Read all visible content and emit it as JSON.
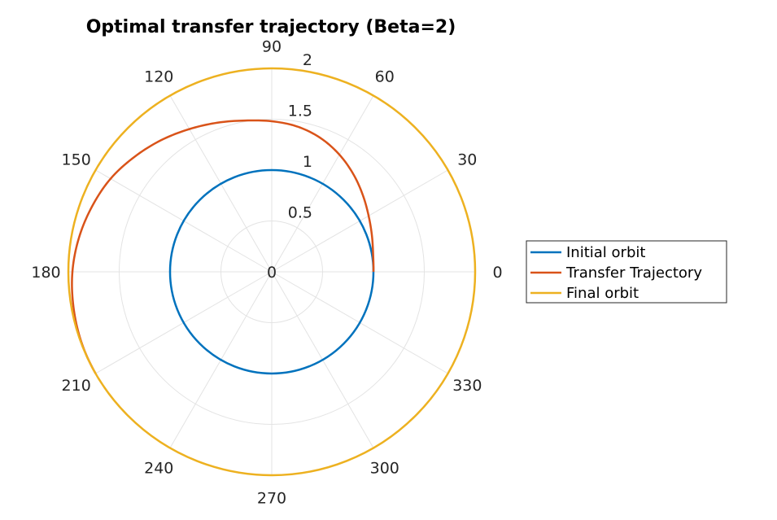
{
  "chart_data": {
    "type": "polar-line",
    "title": "Optimal transfer trajectory (Beta=2)",
    "rlim": [
      0,
      2
    ],
    "r_ticks": [
      "0",
      "0.5",
      "1",
      "1.5",
      "2"
    ],
    "theta_ticks": [
      "0",
      "30",
      "60",
      "90",
      "120",
      "150",
      "180",
      "210",
      "240",
      "270",
      "300",
      "330"
    ],
    "grid": true,
    "legend_location": "right",
    "series": [
      {
        "name": "Initial orbit",
        "color": "#0072BD",
        "kind": "circle",
        "radius": 1
      },
      {
        "name": "Transfer Trajectory",
        "color": "#D95319",
        "kind": "spiral",
        "theta_deg": [
          0,
          10,
          20,
          30,
          40,
          50,
          60,
          70,
          80,
          90,
          100,
          110,
          120,
          130,
          140,
          150,
          160,
          170,
          180,
          190,
          200,
          210
        ],
        "r": [
          1.0,
          1.012,
          1.048,
          1.1,
          1.17,
          1.25,
          1.33,
          1.4,
          1.45,
          1.48,
          1.51,
          1.56,
          1.62,
          1.69,
          1.76,
          1.83,
          1.88,
          1.925,
          1.96,
          1.98,
          1.995,
          2.0
        ]
      },
      {
        "name": "Final orbit",
        "color": "#EDB120",
        "kind": "circle",
        "radius": 2
      }
    ]
  }
}
